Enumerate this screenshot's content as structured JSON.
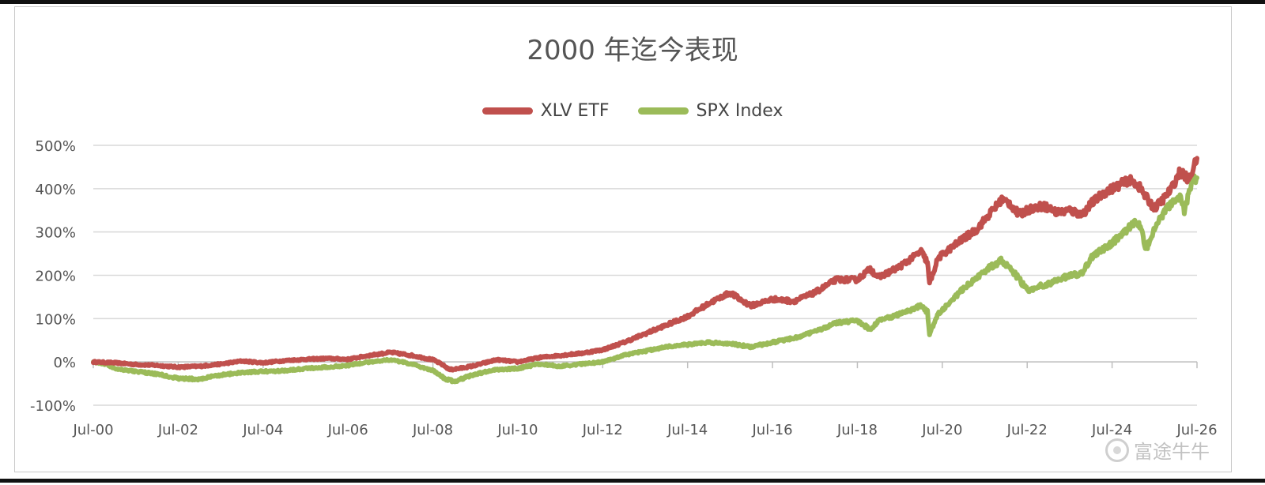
{
  "chart_data": {
    "type": "line",
    "title": "2000 年迄今表现",
    "xlabel": "",
    "ylabel": "",
    "x_tick_labels": [
      "Jul-00",
      "Jul-02",
      "Jul-04",
      "Jul-06",
      "Jul-08",
      "Jul-10",
      "Jul-12",
      "Jul-14",
      "Jul-16",
      "Jul-18",
      "Jul-20",
      "Jul-22",
      "Jul-24",
      "Jul-26"
    ],
    "x_range": [
      2000.5,
      2026.5
    ],
    "y_tick_labels": [
      "-100%",
      "0%",
      "100%",
      "200%",
      "300%",
      "400%",
      "500%"
    ],
    "ylim": [
      -100,
      500
    ],
    "grid": "horizontal",
    "legend_position": "top-center",
    "series": [
      {
        "name": "XLV ETF",
        "color": "#c0504d",
        "points": [
          [
            2000.5,
            0
          ],
          [
            2001.0,
            -2
          ],
          [
            2001.5,
            -6
          ],
          [
            2002.0,
            -8
          ],
          [
            2002.5,
            -12
          ],
          [
            2003.0,
            -10
          ],
          [
            2003.5,
            -5
          ],
          [
            2004.0,
            2
          ],
          [
            2004.5,
            -2
          ],
          [
            2005.0,
            3
          ],
          [
            2005.5,
            6
          ],
          [
            2006.0,
            8
          ],
          [
            2006.5,
            6
          ],
          [
            2007.0,
            15
          ],
          [
            2007.5,
            22
          ],
          [
            2008.0,
            15
          ],
          [
            2008.5,
            5
          ],
          [
            2008.7,
            -5
          ],
          [
            2008.9,
            -18
          ],
          [
            2009.2,
            -14
          ],
          [
            2009.5,
            -8
          ],
          [
            2010.0,
            5
          ],
          [
            2010.5,
            0
          ],
          [
            2011.0,
            10
          ],
          [
            2011.5,
            15
          ],
          [
            2012.0,
            20
          ],
          [
            2012.5,
            28
          ],
          [
            2013.0,
            45
          ],
          [
            2013.5,
            65
          ],
          [
            2014.0,
            85
          ],
          [
            2014.5,
            105
          ],
          [
            2015.0,
            135
          ],
          [
            2015.5,
            160
          ],
          [
            2015.8,
            140
          ],
          [
            2016.0,
            130
          ],
          [
            2016.5,
            145
          ],
          [
            2017.0,
            140
          ],
          [
            2017.5,
            160
          ],
          [
            2018.0,
            190
          ],
          [
            2018.5,
            190
          ],
          [
            2018.8,
            215
          ],
          [
            2019.0,
            195
          ],
          [
            2019.5,
            220
          ],
          [
            2020.0,
            255
          ],
          [
            2020.15,
            230
          ],
          [
            2020.2,
            180
          ],
          [
            2020.4,
            240
          ],
          [
            2020.8,
            270
          ],
          [
            2021.0,
            285
          ],
          [
            2021.3,
            305
          ],
          [
            2021.6,
            340
          ],
          [
            2021.9,
            375
          ],
          [
            2022.1,
            365
          ],
          [
            2022.3,
            340
          ],
          [
            2022.6,
            355
          ],
          [
            2022.9,
            360
          ],
          [
            2023.2,
            345
          ],
          [
            2023.5,
            350
          ],
          [
            2023.8,
            340
          ],
          [
            2024.0,
            365
          ],
          [
            2024.3,
            390
          ],
          [
            2024.6,
            405
          ],
          [
            2024.9,
            420
          ],
          [
            2025.1,
            410
          ],
          [
            2025.3,
            380
          ],
          [
            2025.5,
            355
          ],
          [
            2025.7,
            375
          ],
          [
            2025.9,
            400
          ],
          [
            2026.1,
            440
          ],
          [
            2026.3,
            420
          ],
          [
            2026.5,
            470
          ]
        ]
      },
      {
        "name": "SPX Index",
        "color": "#9bbb59",
        "points": [
          [
            2000.5,
            0
          ],
          [
            2000.8,
            -5
          ],
          [
            2001.0,
            -15
          ],
          [
            2001.5,
            -22
          ],
          [
            2002.0,
            -28
          ],
          [
            2002.5,
            -38
          ],
          [
            2003.0,
            -40
          ],
          [
            2003.5,
            -30
          ],
          [
            2004.0,
            -25
          ],
          [
            2004.5,
            -22
          ],
          [
            2005.0,
            -20
          ],
          [
            2005.5,
            -15
          ],
          [
            2006.0,
            -12
          ],
          [
            2006.5,
            -8
          ],
          [
            2007.0,
            0
          ],
          [
            2007.5,
            5
          ],
          [
            2008.0,
            -5
          ],
          [
            2008.5,
            -20
          ],
          [
            2008.8,
            -40
          ],
          [
            2009.0,
            -45
          ],
          [
            2009.5,
            -28
          ],
          [
            2010.0,
            -18
          ],
          [
            2010.5,
            -15
          ],
          [
            2011.0,
            -5
          ],
          [
            2011.5,
            -10
          ],
          [
            2012.0,
            -5
          ],
          [
            2012.5,
            0
          ],
          [
            2013.0,
            15
          ],
          [
            2013.5,
            25
          ],
          [
            2014.0,
            35
          ],
          [
            2014.5,
            40
          ],
          [
            2015.0,
            45
          ],
          [
            2015.5,
            42
          ],
          [
            2016.0,
            35
          ],
          [
            2016.5,
            45
          ],
          [
            2017.0,
            55
          ],
          [
            2017.5,
            70
          ],
          [
            2018.0,
            90
          ],
          [
            2018.5,
            95
          ],
          [
            2018.8,
            75
          ],
          [
            2019.0,
            95
          ],
          [
            2019.5,
            110
          ],
          [
            2020.0,
            130
          ],
          [
            2020.15,
            115
          ],
          [
            2020.2,
            65
          ],
          [
            2020.4,
            110
          ],
          [
            2020.8,
            150
          ],
          [
            2021.0,
            170
          ],
          [
            2021.5,
            210
          ],
          [
            2021.9,
            235
          ],
          [
            2022.2,
            205
          ],
          [
            2022.5,
            165
          ],
          [
            2022.8,
            175
          ],
          [
            2023.0,
            180
          ],
          [
            2023.5,
            200
          ],
          [
            2023.8,
            205
          ],
          [
            2024.0,
            240
          ],
          [
            2024.5,
            275
          ],
          [
            2024.9,
            310
          ],
          [
            2025.1,
            325
          ],
          [
            2025.2,
            300
          ],
          [
            2025.3,
            260
          ],
          [
            2025.6,
            330
          ],
          [
            2025.9,
            365
          ],
          [
            2026.1,
            385
          ],
          [
            2026.2,
            350
          ],
          [
            2026.4,
            420
          ],
          [
            2026.5,
            425
          ]
        ]
      }
    ]
  },
  "watermark": {
    "text": "富途牛牛"
  }
}
